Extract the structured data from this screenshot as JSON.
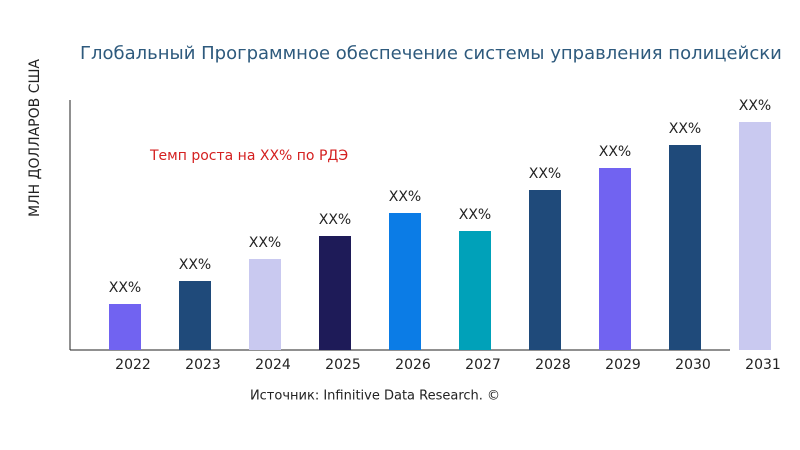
{
  "chart_data": {
    "type": "bar",
    "title": "Глобальный Программное обеспечение системы управления полицейски",
    "y_label": "МЛН ДОЛЛАРОВ США",
    "annotation": "Темп роста на XX% по РДЭ",
    "source": "Источник: Infinitive Data Research. ©",
    "categories": [
      "2022",
      "2023",
      "2024",
      "2025",
      "2026",
      "2027",
      "2028",
      "2029",
      "2030",
      "2031"
    ],
    "values": [
      46,
      69,
      91,
      114,
      137,
      119,
      160,
      182,
      205,
      228
    ],
    "value_labels": [
      "XX%",
      "XX%",
      "XX%",
      "XX%",
      "XX%",
      "XX%",
      "XX%",
      "XX%",
      "XX%",
      "XX%"
    ],
    "colors": [
      "#7163f1",
      "#1f4a7a",
      "#c9c9f0",
      "#1e1b58",
      "#0b7ce6",
      "#00a1b9",
      "#1f4a7a",
      "#7163f1",
      "#1f4a7a",
      "#c9c9f0"
    ]
  }
}
